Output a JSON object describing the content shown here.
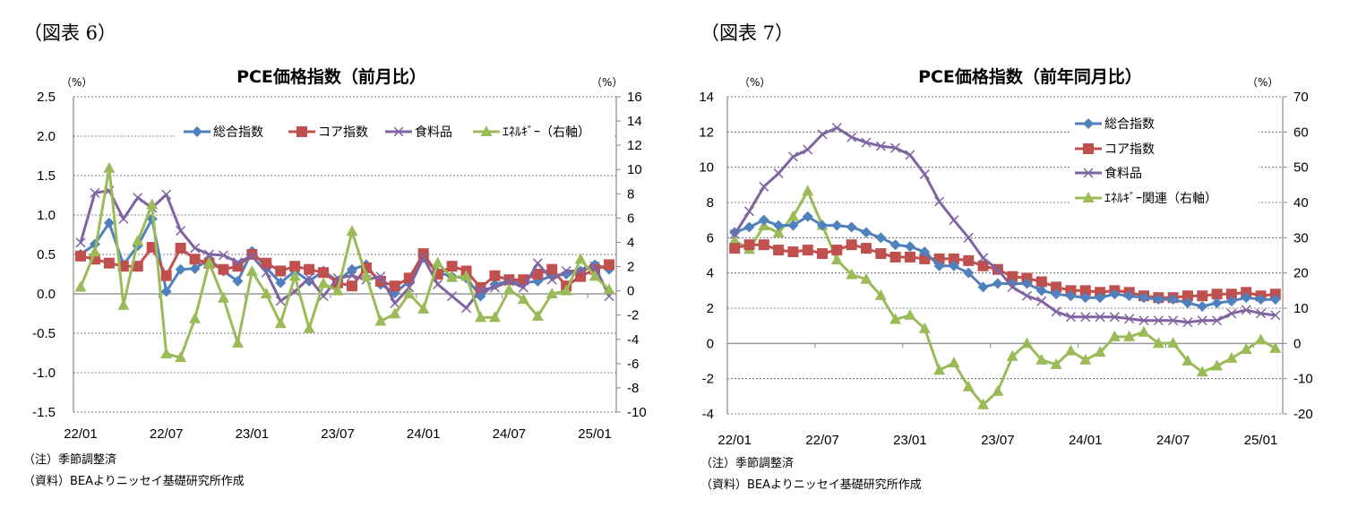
{
  "colors": {
    "headline": "#4F81BD",
    "core": "#C0504D",
    "food": "#8064A2",
    "energy": "#9BBB59",
    "grid": "#808080"
  },
  "chart_data": [
    {
      "figure_label": "（図表 6）",
      "type": "line",
      "title": "PCE価格指数（前月比）",
      "y_unit_left": "（%）",
      "y_unit_right": "（%）",
      "ylim": [
        -1.5,
        2.5
      ],
      "yticks": [
        "2.5",
        "2.0",
        "1.5",
        "1.0",
        "0.5",
        "0.0",
        "-0.5",
        "-1.0",
        "-1.5"
      ],
      "y2lim": [
        -10,
        16
      ],
      "y2ticks": [
        "16",
        "14",
        "12",
        "10",
        "8",
        "6",
        "4",
        "2",
        "0",
        "-2",
        "-4",
        "-6",
        "-8",
        "-10"
      ],
      "xtick_labels": [
        "22/01",
        "22/07",
        "23/01",
        "23/07",
        "24/01",
        "24/07",
        "25/01"
      ],
      "x": [
        "22/01",
        "22/02",
        "22/03",
        "22/04",
        "22/05",
        "22/06",
        "22/07",
        "22/08",
        "22/09",
        "22/10",
        "22/11",
        "22/12",
        "23/01",
        "23/02",
        "23/03",
        "23/04",
        "23/05",
        "23/06",
        "23/07",
        "23/08",
        "23/09",
        "23/10",
        "23/11",
        "23/12",
        "24/01",
        "24/02",
        "24/03",
        "24/04",
        "24/05",
        "24/06",
        "24/07",
        "24/08",
        "24/09",
        "24/10",
        "24/11",
        "24/12",
        "25/01",
        "25/02"
      ],
      "grid": true,
      "legend": "top",
      "series": [
        {
          "name": "総合指数",
          "axis": "left",
          "marker": "diamond",
          "color_key": "headline",
          "values": [
            0.5,
            0.63,
            0.9,
            0.37,
            0.61,
            0.95,
            0.03,
            0.31,
            0.32,
            0.44,
            0.29,
            0.16,
            0.54,
            0.33,
            0.14,
            0.29,
            0.16,
            0.29,
            0.16,
            0.31,
            0.37,
            0.12,
            0.01,
            0.16,
            0.46,
            0.27,
            0.22,
            0.2,
            -0.03,
            0.12,
            0.16,
            0.14,
            0.16,
            0.23,
            0.25,
            0.29,
            0.37,
            0.31
          ]
        },
        {
          "name": "コア指数",
          "axis": "left",
          "marker": "square",
          "color_key": "core",
          "values": [
            0.48,
            0.44,
            0.39,
            0.35,
            0.35,
            0.59,
            0.23,
            0.58,
            0.44,
            0.39,
            0.31,
            0.35,
            0.5,
            0.39,
            0.29,
            0.35,
            0.31,
            0.27,
            0.14,
            0.1,
            0.33,
            0.16,
            0.1,
            0.2,
            0.51,
            0.25,
            0.35,
            0.29,
            0.08,
            0.23,
            0.18,
            0.18,
            0.25,
            0.31,
            0.1,
            0.22,
            0.31,
            0.37
          ]
        },
        {
          "name": "食料品",
          "axis": "left",
          "marker": "x",
          "color_key": "food",
          "values": [
            0.65,
            1.28,
            1.31,
            0.95,
            1.22,
            1.09,
            1.26,
            0.8,
            0.58,
            0.5,
            0.49,
            0.4,
            0.48,
            0.27,
            -0.09,
            0.03,
            0.2,
            -0.03,
            0.2,
            0.23,
            0.18,
            0.22,
            -0.12,
            0.08,
            0.46,
            0.12,
            -0.03,
            -0.18,
            0.05,
            0.08,
            0.16,
            0.08,
            0.39,
            0.18,
            0.29,
            0.29,
            0.35,
            -0.03
          ]
        },
        {
          "name": "ｴﾈﾙｷﾞｰ（右軸）",
          "axis": "right",
          "marker": "triangle",
          "color_key": "energy",
          "values": [
            0.3,
            3.2,
            10.1,
            -1.2,
            4.1,
            7.1,
            -5.2,
            -5.5,
            -2.3,
            2.3,
            -0.6,
            -4.3,
            1.6,
            -0.25,
            -2.7,
            1.2,
            -3.1,
            0.6,
            0.0,
            4.9,
            1.2,
            -2.5,
            -1.9,
            -0.25,
            -1.5,
            2.3,
            1.1,
            1.2,
            -2.2,
            -2.2,
            0.1,
            -0.7,
            -2.1,
            -0.25,
            0.0,
            2.6,
            1.2,
            0.1
          ]
        }
      ],
      "notes": [
        "（注）季節調整済",
        "（資料）BEAよりニッセイ基礎研究所作成"
      ]
    },
    {
      "figure_label": "（図表 7）",
      "type": "line",
      "title": "PCE価格指数（前年同月比）",
      "y_unit_left": "（%）",
      "y_unit_right": "（%）",
      "ylim": [
        -4,
        14
      ],
      "yticks": [
        "14",
        "12",
        "10",
        "8",
        "6",
        "4",
        "2",
        "0",
        "-2",
        "-4"
      ],
      "y2lim": [
        -20,
        70
      ],
      "y2ticks": [
        "70",
        "60",
        "50",
        "40",
        "30",
        "20",
        "10",
        "0",
        "-10",
        "-20"
      ],
      "xtick_labels": [
        "22/01",
        "22/07",
        "23/01",
        "23/07",
        "24/01",
        "24/07",
        "25/01"
      ],
      "x": [
        "22/01",
        "22/02",
        "22/03",
        "22/04",
        "22/05",
        "22/06",
        "22/07",
        "22/08",
        "22/09",
        "22/10",
        "22/11",
        "22/12",
        "23/01",
        "23/02",
        "23/03",
        "23/04",
        "23/05",
        "23/06",
        "23/07",
        "23/08",
        "23/09",
        "23/10",
        "23/11",
        "23/12",
        "24/01",
        "24/02",
        "24/03",
        "24/04",
        "24/05",
        "24/06",
        "24/07",
        "24/08",
        "24/09",
        "24/10",
        "24/11",
        "24/12",
        "25/01",
        "25/02"
      ],
      "grid": true,
      "legend": "top-right",
      "series": [
        {
          "name": "総合指数",
          "axis": "left",
          "marker": "diamond",
          "color_key": "headline",
          "values": [
            6.3,
            6.6,
            7.0,
            6.7,
            6.7,
            7.2,
            6.7,
            6.7,
            6.6,
            6.3,
            6.0,
            5.6,
            5.5,
            5.2,
            4.4,
            4.4,
            4.0,
            3.2,
            3.4,
            3.4,
            3.4,
            3.0,
            2.8,
            2.7,
            2.6,
            2.6,
            2.8,
            2.7,
            2.6,
            2.5,
            2.5,
            2.3,
            2.1,
            2.3,
            2.4,
            2.6,
            2.5,
            2.5
          ]
        },
        {
          "name": "コア指数",
          "axis": "left",
          "marker": "square",
          "color_key": "core",
          "values": [
            5.4,
            5.6,
            5.6,
            5.3,
            5.2,
            5.3,
            5.1,
            5.3,
            5.6,
            5.4,
            5.1,
            4.9,
            4.9,
            4.8,
            4.8,
            4.8,
            4.7,
            4.4,
            4.2,
            3.8,
            3.7,
            3.5,
            3.2,
            3.0,
            3.0,
            2.9,
            3.0,
            2.9,
            2.7,
            2.6,
            2.6,
            2.7,
            2.7,
            2.8,
            2.8,
            2.9,
            2.7,
            2.8
          ]
        },
        {
          "name": "食料品",
          "axis": "left",
          "marker": "x",
          "color_key": "food",
          "values": [
            6.2,
            7.5,
            8.9,
            9.65,
            10.6,
            11.0,
            11.87,
            12.24,
            11.7,
            11.4,
            11.2,
            11.1,
            10.7,
            9.6,
            8.05,
            7.0,
            6.0,
            4.85,
            4.2,
            3.2,
            2.7,
            2.4,
            1.8,
            1.5,
            1.5,
            1.5,
            1.5,
            1.4,
            1.3,
            1.3,
            1.3,
            1.2,
            1.3,
            1.3,
            1.7,
            1.9,
            1.7,
            1.6
          ]
        },
        {
          "name": "ｴﾈﾙｷﾞｰ関連（右軸）",
          "axis": "right",
          "marker": "triangle",
          "color_key": "energy",
          "values": [
            29.2,
            26.7,
            33.4,
            31.4,
            36.0,
            43.2,
            33.5,
            23.7,
            19.5,
            18.2,
            13.6,
            6.8,
            8.0,
            4.2,
            -7.6,
            -5.5,
            -12.3,
            -17.4,
            -13.6,
            -3.7,
            0.0,
            -4.7,
            -6.0,
            -2.1,
            -4.7,
            -2.5,
            1.9,
            1.9,
            3.2,
            0.0,
            0.1,
            -5.0,
            -8.1,
            -6.4,
            -4.2,
            -1.7,
            1.0,
            -1.4
          ]
        }
      ],
      "notes": [
        "（注）季節調整済",
        "（資料）BEAよりニッセイ基礎研究所作成"
      ]
    }
  ]
}
